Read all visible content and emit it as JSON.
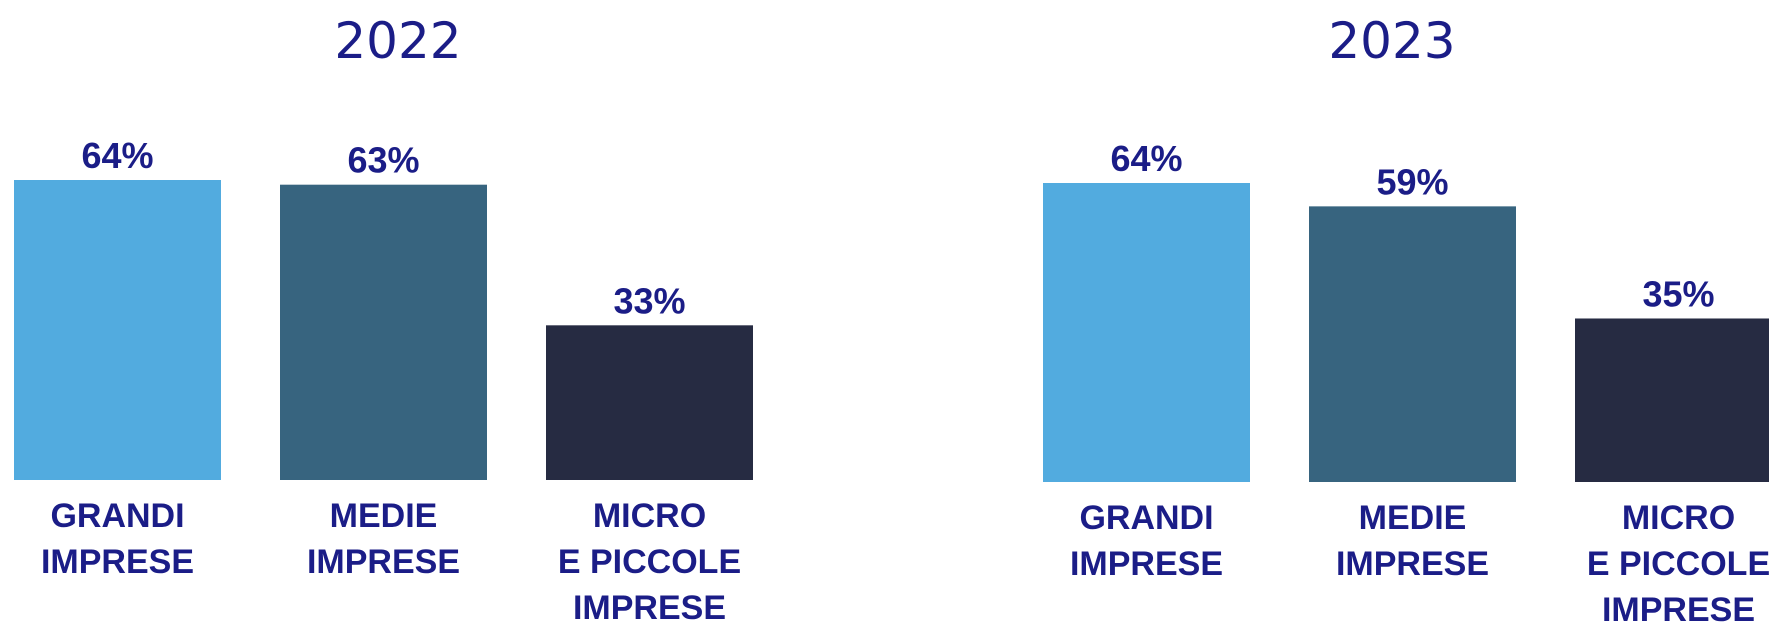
{
  "chart_data": [
    {
      "type": "bar",
      "title": "2022",
      "categories": [
        [
          "GRANDI",
          "IMPRESE"
        ],
        [
          "MEDIE",
          "IMPRESE"
        ],
        [
          "MICRO",
          "E PICCOLE",
          "IMPRESE"
        ]
      ],
      "values": [
        64,
        63,
        33
      ],
      "value_labels": [
        "64%",
        "63%",
        "33%"
      ],
      "colors": [
        "#52abdf",
        "#37647f",
        "#262b42"
      ],
      "ylim": [
        0,
        64
      ],
      "grid": false,
      "legend": "none"
    },
    {
      "type": "bar",
      "title": "2023",
      "categories": [
        [
          "GRANDI",
          "IMPRESE"
        ],
        [
          "MEDIE",
          "IMPRESE"
        ],
        [
          "MICRO",
          "E PICCOLE",
          "IMPRESE"
        ]
      ],
      "values": [
        64,
        59,
        35
      ],
      "value_labels": [
        "64%",
        "59%",
        "35%"
      ],
      "colors": [
        "#52abdf",
        "#37647f",
        "#262b42"
      ],
      "ylim": [
        0,
        64
      ],
      "grid": false,
      "legend": "none"
    }
  ]
}
